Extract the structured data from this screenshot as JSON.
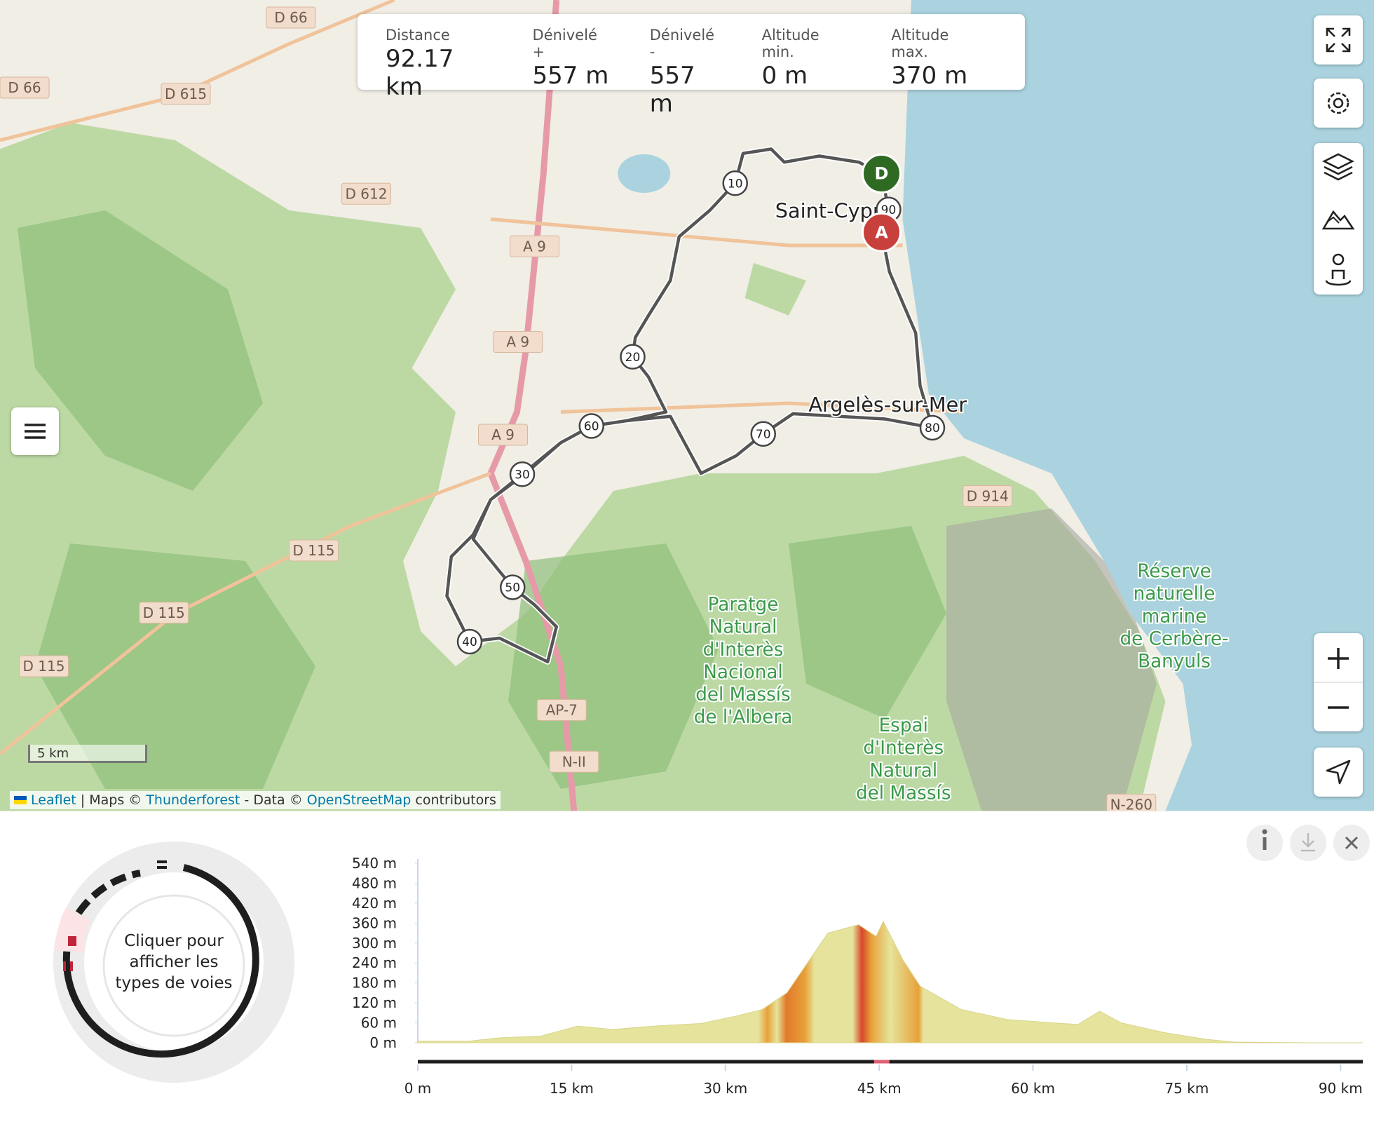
{
  "stats": [
    {
      "label": "Distance",
      "value": "92.17 km"
    },
    {
      "label": "Dénivelé +",
      "value": "557 m"
    },
    {
      "label": "Dénivelé -",
      "value": "557 m"
    },
    {
      "label": "Altitude min.",
      "value": "0 m"
    },
    {
      "label": "Altitude max.",
      "value": "370 m"
    }
  ],
  "map": {
    "roads": [
      "D 66",
      "D 66",
      "D 615",
      "D 612",
      "A 9",
      "A 9",
      "A 9",
      "D 115",
      "D 115",
      "D 115",
      "D 914",
      "AP-7",
      "N-II",
      "N-260"
    ],
    "places": [
      {
        "lines": [
          "Saint-Cypr"
        ]
      },
      {
        "lines": [
          "Argelès-sur-Mer"
        ]
      },
      {
        "lines": [
          "Réserve",
          "naturelle",
          "marine",
          "de Cerbère-",
          "Banyuls"
        ]
      },
      {
        "lines": [
          "Paratge",
          "Natural",
          "d'Interès",
          "Nacional",
          "del Massís",
          "de l'Albera"
        ]
      },
      {
        "lines": [
          "Espai",
          "d'Interès",
          "Natural",
          "del Massís"
        ]
      }
    ],
    "km_markers": [
      "10",
      "20",
      "30",
      "40",
      "50",
      "60",
      "70",
      "80",
      "90"
    ],
    "start": "D",
    "end": "A",
    "scale": "5 km",
    "attribution": {
      "leaflet": "Leaflet",
      "maps": "| Maps ©",
      "thunderforest": "Thunderforest",
      "data": "- Data ©",
      "osm": "OpenStreetMap",
      "contributors": "contributors"
    }
  },
  "donut_text": [
    "Cliquer pour",
    "afficher les",
    "types de voies"
  ],
  "chart_data": {
    "type": "area",
    "x": [
      0,
      5,
      8,
      12,
      15.6,
      19,
      23,
      27.6,
      31,
      33.6,
      36,
      38,
      40,
      43,
      44.7,
      45.4,
      47.3,
      49,
      53,
      57.5,
      61.8,
      64.4,
      66.5,
      68.6,
      72.9,
      77,
      79.7,
      87,
      92.17
    ],
    "values": [
      5,
      5,
      15,
      20,
      50,
      40,
      50,
      58,
      80,
      100,
      150,
      240,
      330,
      355,
      320,
      365,
      250,
      170,
      100,
      70,
      60,
      55,
      95,
      60,
      30,
      10,
      2,
      0,
      0
    ],
    "color": "#e6e49c",
    "xlim": [
      0,
      92.17
    ],
    "ylim": [
      0,
      540
    ],
    "yticks": [
      {
        "value": 0,
        "label": "0 m"
      },
      {
        "value": 60,
        "label": "60 m"
      },
      {
        "value": 120,
        "label": "120 m"
      },
      {
        "value": 180,
        "label": "180 m"
      },
      {
        "value": 240,
        "label": "240 m"
      },
      {
        "value": 300,
        "label": "300 m"
      },
      {
        "value": 360,
        "label": "360 m"
      },
      {
        "value": 420,
        "label": "420 m"
      },
      {
        "value": 480,
        "label": "480 m"
      },
      {
        "value": 540,
        "label": "540 m"
      }
    ],
    "xticks": [
      {
        "value": 0,
        "label": "0 m"
      },
      {
        "value": 15,
        "label": "15 km"
      },
      {
        "value": 30,
        "label": "30 km"
      },
      {
        "value": 45,
        "label": "45 km"
      },
      {
        "value": 60,
        "label": "60 km"
      },
      {
        "value": 75,
        "label": "75 km"
      },
      {
        "value": 90,
        "label": "90 km"
      }
    ]
  }
}
